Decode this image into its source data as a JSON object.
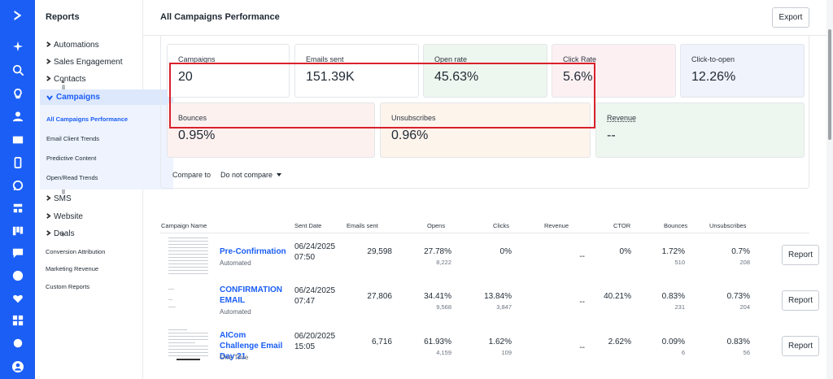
{
  "sidebar": {
    "title": "Reports",
    "items": [
      {
        "label": "Automations"
      },
      {
        "label": "Sales Engagement"
      },
      {
        "label": "Contacts"
      },
      {
        "label": "Campaigns"
      },
      {
        "label": "SMS"
      },
      {
        "label": "Website"
      },
      {
        "label": "Deals"
      }
    ],
    "campaign_subitems": [
      {
        "label": "All Campaigns Performance"
      },
      {
        "label": "Email Client Trends"
      },
      {
        "label": "Predictive Content"
      },
      {
        "label": "Open/Read Trends"
      }
    ],
    "bottom_items": [
      {
        "label": "Conversion Attribution"
      },
      {
        "label": "Marketing Revenue"
      },
      {
        "label": "Custom Reports"
      }
    ]
  },
  "rail_icons": [
    "logo-icon",
    "sparkle-icon",
    "search-icon",
    "lightbulb-icon",
    "contact-icon",
    "email-icon",
    "mobile-icon",
    "whatsapp-icon",
    "automation-icon",
    "board-icon",
    "chat-icon",
    "help-icon",
    "heart-icon",
    "apps-icon",
    "settings-icon",
    "avatar-icon"
  ],
  "header": {
    "title": "All Campaigns Performance",
    "export_label": "Export"
  },
  "stats": {
    "campaigns": {
      "label": "Campaigns",
      "value": "20"
    },
    "emails_sent": {
      "label": "Emails sent",
      "value": "151.39K"
    },
    "open_rate": {
      "label": "Open rate",
      "value": "45.63%"
    },
    "click_rate": {
      "label": "Click Rate",
      "value": "5.6%"
    },
    "click_to_open": {
      "label": "Click-to-open",
      "value": "12.26%"
    },
    "bounces": {
      "label": "Bounces",
      "value": "0.95%"
    },
    "unsubscribes": {
      "label": "Unsubscribes",
      "value": "0.96%"
    },
    "revenue": {
      "label": "Revenue",
      "value": "--"
    }
  },
  "compare": {
    "label": "Compare to",
    "selected": "Do not compare"
  },
  "table": {
    "columns": [
      "Campaign Name",
      "Sent Date",
      "Emails sent",
      "Opens",
      "Clicks",
      "Revenue",
      "CTOR",
      "Bounces",
      "Unsubscribes"
    ],
    "report_label": "Report",
    "rows": [
      {
        "name": "Pre-Confirmation",
        "type": "Automated",
        "sent_date": "06/24/2025",
        "sent_time": "07:50",
        "emails_sent": "29,598",
        "opens_pct": "27.78%",
        "opens_n": "8,222",
        "clicks_pct": "0%",
        "clicks_n": "",
        "revenue": "--",
        "ctor": "0%",
        "bounces_pct": "1.72%",
        "bounces_n": "510",
        "unsubs_pct": "0.7%",
        "unsubs_n": "208"
      },
      {
        "name": "CONFIRMATION EMAIL",
        "type": "Automated",
        "sent_date": "06/24/2025",
        "sent_time": "07:47",
        "emails_sent": "27,806",
        "opens_pct": "34.41%",
        "opens_n": "9,568",
        "clicks_pct": "13.84%",
        "clicks_n": "3,847",
        "revenue": "--",
        "ctor": "40.21%",
        "bounces_pct": "0.83%",
        "bounces_n": "231",
        "unsubs_pct": "0.73%",
        "unsubs_n": "204"
      },
      {
        "name": "AICom Challenge Email Day 21",
        "type": "One-Time",
        "sent_date": "06/20/2025",
        "sent_time": "15:05",
        "emails_sent": "6,716",
        "opens_pct": "61.93%",
        "opens_n": "4,159",
        "clicks_pct": "1.62%",
        "clicks_n": "109",
        "revenue": "--",
        "ctor": "2.62%",
        "bounces_pct": "0.09%",
        "bounces_n": "6",
        "unsubs_pct": "0.83%",
        "unsubs_n": "56"
      }
    ]
  },
  "colors": {
    "brand": "#1a5ef5",
    "highlight_border": "#d8212b",
    "campaigns_bg": "#ffffff",
    "emails_bg": "#ffffff",
    "open_rate_bg": "#eef7ef",
    "click_rate_bg": "#fdf0f3",
    "click_to_open_bg": "#f0f2fc",
    "bounces_bg": "#fdf1ef",
    "unsubscribes_bg": "#fdf4ec",
    "revenue_bg": "#eef7ef"
  }
}
